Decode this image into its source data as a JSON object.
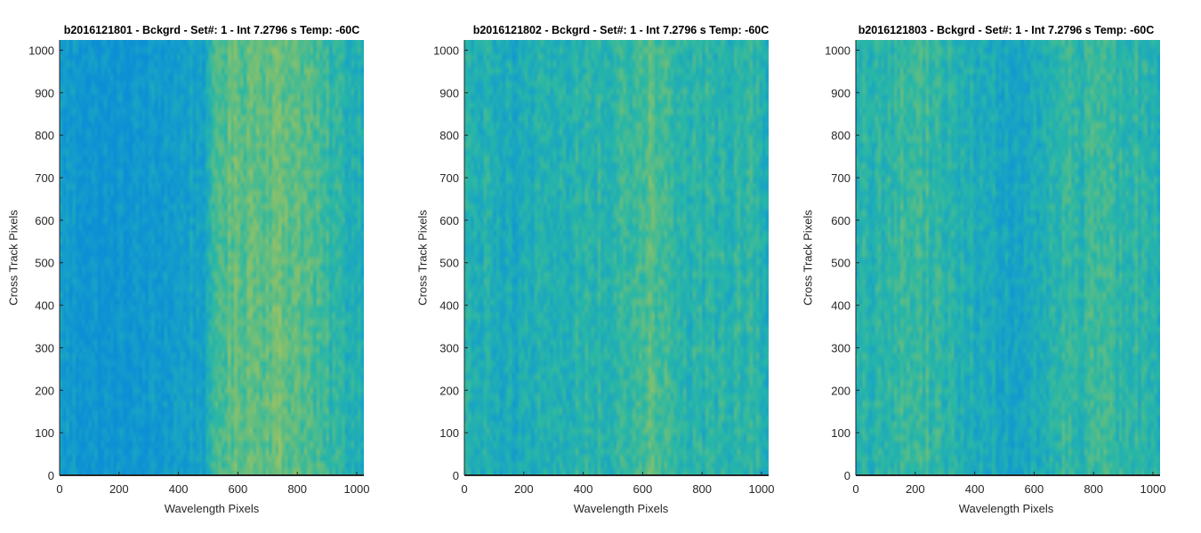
{
  "chart_data": [
    {
      "type": "heatmap",
      "title": "b2016121801 - Bckgrd - Set#: 1 - Int 7.2796 s Temp: -60C",
      "xlabel": "Wavelength Pixels",
      "ylabel": "Cross Track Pixels",
      "xlim": [
        0,
        1024
      ],
      "ylim": [
        0,
        1024
      ],
      "xticks": [
        0,
        200,
        400,
        600,
        800,
        1000
      ],
      "yticks": [
        0,
        100,
        200,
        300,
        400,
        500,
        600,
        700,
        800,
        900,
        1000
      ],
      "colormap": [
        "#0d8ed6",
        "#17a2c8",
        "#2ab8a5",
        "#74bf76",
        "#b4c55a"
      ],
      "column_profile": [
        {
          "x": 0,
          "level": 0.18
        },
        {
          "x": 150,
          "level": 0.08
        },
        {
          "x": 300,
          "level": 0.12
        },
        {
          "x": 500,
          "level": 0.28
        },
        {
          "x": 530,
          "level": 0.62
        },
        {
          "x": 650,
          "level": 0.72
        },
        {
          "x": 800,
          "level": 0.7
        },
        {
          "x": 900,
          "level": 0.5
        },
        {
          "x": 1024,
          "level": 0.4
        }
      ]
    },
    {
      "type": "heatmap",
      "title": "b2016121802 - Bckgrd - Set#: 1 - Int 7.2796 s Temp: -60C",
      "xlabel": "Wavelength Pixels",
      "ylabel": "Cross Track Pixels",
      "xlim": [
        0,
        1024
      ],
      "ylim": [
        0,
        1024
      ],
      "xticks": [
        0,
        200,
        400,
        600,
        800,
        1000
      ],
      "yticks": [
        0,
        100,
        200,
        300,
        400,
        500,
        600,
        700,
        800,
        900,
        1000
      ],
      "colormap": [
        "#0d8ed6",
        "#17a2c8",
        "#2ab8a5",
        "#74bf76",
        "#b4c55a"
      ],
      "column_profile": [
        {
          "x": 0,
          "level": 0.42
        },
        {
          "x": 150,
          "level": 0.32
        },
        {
          "x": 300,
          "level": 0.42
        },
        {
          "x": 500,
          "level": 0.48
        },
        {
          "x": 620,
          "level": 0.66
        },
        {
          "x": 690,
          "level": 0.6
        },
        {
          "x": 720,
          "level": 0.44
        },
        {
          "x": 900,
          "level": 0.46
        },
        {
          "x": 1024,
          "level": 0.44
        }
      ]
    },
    {
      "type": "heatmap",
      "title": "b2016121803 - Bckgrd - Set#: 1 - Int 7.2796 s Temp: -60C",
      "xlabel": "Wavelength Pixels",
      "ylabel": "Cross Track Pixels",
      "xlim": [
        0,
        1024
      ],
      "ylim": [
        0,
        1024
      ],
      "xticks": [
        0,
        200,
        400,
        600,
        800,
        1000
      ],
      "yticks": [
        0,
        100,
        200,
        300,
        400,
        500,
        600,
        700,
        800,
        900,
        1000
      ],
      "colormap": [
        "#0d8ed6",
        "#17a2c8",
        "#2ab8a5",
        "#74bf76",
        "#b4c55a"
      ],
      "column_profile": [
        {
          "x": 0,
          "level": 0.42
        },
        {
          "x": 200,
          "level": 0.55
        },
        {
          "x": 300,
          "level": 0.46
        },
        {
          "x": 500,
          "level": 0.28
        },
        {
          "x": 650,
          "level": 0.36
        },
        {
          "x": 700,
          "level": 0.46
        },
        {
          "x": 850,
          "level": 0.52
        },
        {
          "x": 1024,
          "level": 0.44
        }
      ]
    }
  ]
}
